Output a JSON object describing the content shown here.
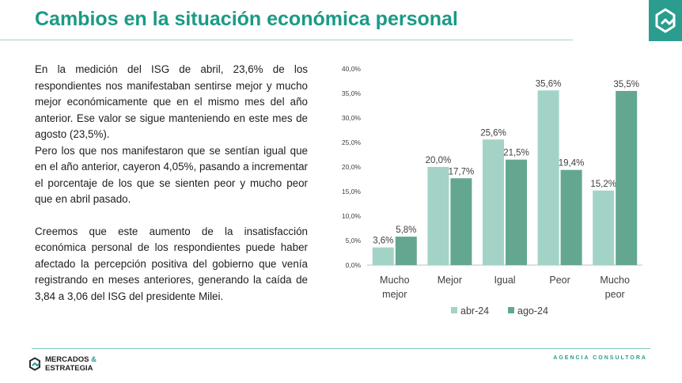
{
  "header": {
    "title": "Cambios en la situación económica personal"
  },
  "text": {
    "p1": "En la medición del ISG de abril, 23,6% de los respondientes nos manifestaban sentirse mejor y mucho mejor económicamente que en el mismo mes del año anterior. Ese valor se sigue manteniendo en este mes de agosto (23,5%).",
    "p2": "Pero los que nos manifestaron que se sentían igual que en el año anterior, cayeron 4,05%, pasando a incrementar el porcentaje de los que se sienten peor y mucho peor que en abril pasado.",
    "p3": "Creemos que este aumento de la insatisfacción económica personal de los respondientes puede haber afectado la percepción positiva del gobierno que venía registrando en meses anteriores, generando la caída de 3,84 a 3,06 del ISG del presidente Milei."
  },
  "chart_data": {
    "type": "bar",
    "categories": [
      [
        "Mucho",
        "mejor"
      ],
      [
        "Mejor"
      ],
      [
        "Igual"
      ],
      [
        "Peor"
      ],
      [
        "Mucho",
        "peor"
      ]
    ],
    "series": [
      {
        "name": "abr-24",
        "values": [
          3.6,
          20.0,
          25.6,
          35.6,
          15.2
        ],
        "labels": [
          "3,6%",
          "20,0%",
          "25,6%",
          "35,6%",
          "15,2%"
        ],
        "color": "#a3d3c6"
      },
      {
        "name": "ago-24",
        "values": [
          5.8,
          17.7,
          21.5,
          19.4,
          35.5
        ],
        "labels": [
          "5,8%",
          "17,7%",
          "21,5%",
          "19,4%",
          "35,5%"
        ],
        "color": "#64a791"
      }
    ],
    "ylim": [
      0,
      40
    ],
    "ticks": [
      0,
      5,
      10,
      15,
      20,
      25,
      30,
      35,
      40
    ],
    "tick_labels": [
      "0,0%",
      "5,0%",
      "10,0%",
      "15,0%",
      "20,0%",
      "25,0%",
      "30,0%",
      "35,0%",
      "40,0%"
    ],
    "grid": false,
    "legend": "bottom"
  },
  "footer": {
    "brand_line1": "MERCADOS",
    "brand_amp": "&",
    "brand_line2": "ESTRATEGIA",
    "agency": "AGENCIA CONSULTORA"
  },
  "colors": {
    "accent": "#2a9d8f",
    "title": "#1a9a86"
  }
}
